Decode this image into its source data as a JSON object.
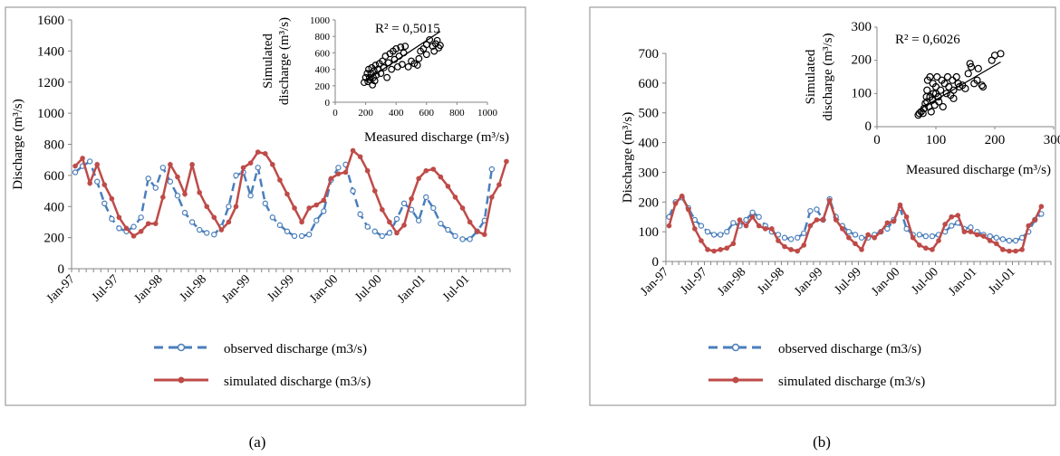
{
  "panel_labels": [
    "(a)",
    "(b)"
  ],
  "colors": {
    "observed": "#4A7EBB",
    "simulated": "#BE4B48",
    "frame": "#888888",
    "axis": "#868686",
    "text": "#000000"
  },
  "legend": {
    "observed": "observed discharge (m3/s)",
    "simulated": "simulated discharge (m3/s)"
  },
  "chart_data": [
    {
      "type": "line",
      "panel": "(a)",
      "ylabel": "Discharge (m³/s)",
      "ylim": [
        0,
        1600
      ],
      "yticks": [
        0,
        200,
        400,
        600,
        800,
        1000,
        1200,
        1400,
        1600
      ],
      "xticks": [
        "Jan-97",
        "Jul-97",
        "Jan-98",
        "Jul-98",
        "Jan-99",
        "Jul-99",
        "Jan-00",
        "Jul-00",
        "Jan-01",
        "Jul-01"
      ],
      "x_months": "Jan-97 to Dec-01 (60 monthly values)",
      "series": [
        {
          "name": "observed discharge (m3/s)",
          "values": [
            620,
            660,
            690,
            560,
            420,
            320,
            260,
            240,
            270,
            330,
            580,
            520,
            650,
            560,
            470,
            360,
            300,
            250,
            230,
            220,
            270,
            400,
            600,
            620,
            470,
            650,
            420,
            330,
            280,
            240,
            210,
            210,
            220,
            310,
            370,
            570,
            650,
            670,
            500,
            350,
            270,
            240,
            210,
            230,
            320,
            420,
            380,
            310,
            460,
            390,
            290,
            250,
            210,
            190,
            190,
            240,
            310,
            640,
            null,
            null
          ]
        },
        {
          "name": "simulated discharge (m3/s)",
          "values": [
            660,
            710,
            550,
            670,
            540,
            450,
            330,
            260,
            210,
            240,
            290,
            290,
            460,
            670,
            590,
            480,
            670,
            490,
            400,
            330,
            250,
            300,
            400,
            650,
            680,
            750,
            740,
            670,
            570,
            480,
            390,
            300,
            390,
            410,
            440,
            580,
            610,
            620,
            760,
            720,
            630,
            500,
            380,
            300,
            230,
            280,
            450,
            580,
            630,
            640,
            590,
            530,
            460,
            390,
            300,
            240,
            220,
            460,
            540,
            690
          ]
        }
      ],
      "inset": {
        "type": "scatter",
        "xlabel": "Measured discharge (m³/s)",
        "ylabel": "Simulated discharge (m³/s)",
        "xlim": [
          0,
          1000
        ],
        "ylim": [
          0,
          1000
        ],
        "xticks": [
          0,
          200,
          400,
          600,
          800,
          1000
        ],
        "yticks": [
          0,
          200,
          400,
          600,
          800,
          1000
        ],
        "r2_label": "R² = 0,5015",
        "trendline": [
          [
            200,
            260
          ],
          [
            690,
            860
          ]
        ],
        "points": [
          [
            190,
            240
          ],
          [
            200,
            300
          ],
          [
            210,
            350
          ],
          [
            215,
            250
          ],
          [
            220,
            400
          ],
          [
            225,
            300
          ],
          [
            230,
            270
          ],
          [
            235,
            350
          ],
          [
            240,
            420
          ],
          [
            245,
            210
          ],
          [
            250,
            300
          ],
          [
            255,
            380
          ],
          [
            260,
            260
          ],
          [
            265,
            450
          ],
          [
            270,
            330
          ],
          [
            280,
            400
          ],
          [
            290,
            470
          ],
          [
            300,
            350
          ],
          [
            310,
            500
          ],
          [
            320,
            420
          ],
          [
            330,
            560
          ],
          [
            340,
            300
          ],
          [
            350,
            480
          ],
          [
            360,
            590
          ],
          [
            370,
            400
          ],
          [
            380,
            620
          ],
          [
            390,
            520
          ],
          [
            400,
            650
          ],
          [
            410,
            430
          ],
          [
            420,
            560
          ],
          [
            430,
            670
          ],
          [
            440,
            460
          ],
          [
            450,
            600
          ],
          [
            460,
            680
          ],
          [
            480,
            430
          ],
          [
            500,
            500
          ],
          [
            520,
            470
          ],
          [
            540,
            450
          ],
          [
            560,
            620
          ],
          [
            580,
            650
          ],
          [
            600,
            700
          ],
          [
            620,
            760
          ],
          [
            640,
            680
          ],
          [
            650,
            620
          ],
          [
            660,
            710
          ],
          [
            670,
            750
          ],
          [
            680,
            660
          ],
          [
            690,
            690
          ],
          [
            600,
            580
          ],
          [
            550,
            530
          ]
        ]
      }
    },
    {
      "type": "line",
      "panel": "(b)",
      "ylabel": "Discharge (m³/s)",
      "ylim": [
        0,
        700
      ],
      "yticks": [
        0,
        100,
        200,
        300,
        400,
        500,
        600,
        700
      ],
      "xticks": [
        "Jan-97",
        "Jul-97",
        "Jan-98",
        "Jul-98",
        "Jan-99",
        "Jul-99",
        "Jan-00",
        "Jul-00",
        "Jan-01",
        "Jul-01"
      ],
      "x_months": "Jan-97 to Dec-01 (60 monthly values)",
      "series": [
        {
          "name": "observed discharge (m3/s)",
          "values": [
            150,
            200,
            215,
            180,
            140,
            120,
            100,
            90,
            90,
            100,
            130,
            120,
            140,
            165,
            150,
            120,
            100,
            90,
            80,
            75,
            80,
            95,
            170,
            175,
            140,
            210,
            150,
            120,
            100,
            90,
            80,
            80,
            90,
            100,
            110,
            140,
            180,
            110,
            90,
            90,
            85,
            85,
            90,
            100,
            120,
            130,
            110,
            115,
            100,
            90,
            85,
            80,
            75,
            70,
            70,
            80,
            100,
            140,
            160,
            null
          ]
        },
        {
          "name": "simulated discharge (m3/s)",
          "values": [
            120,
            195,
            220,
            175,
            110,
            70,
            40,
            35,
            40,
            45,
            60,
            140,
            120,
            150,
            120,
            110,
            110,
            70,
            50,
            40,
            35,
            55,
            120,
            140,
            140,
            205,
            140,
            110,
            80,
            60,
            40,
            90,
            80,
            100,
            130,
            135,
            190,
            150,
            80,
            55,
            45,
            40,
            70,
            125,
            150,
            155,
            100,
            100,
            90,
            85,
            70,
            60,
            40,
            35,
            35,
            40,
            120,
            140,
            185,
            null
          ]
        }
      ],
      "inset": {
        "type": "scatter",
        "xlabel": "Measured discharge (m³/s)",
        "ylabel": "Simulated discharge (m³/s)",
        "xlim": [
          0,
          300
        ],
        "ylim": [
          0,
          300
        ],
        "xticks": [
          0,
          100,
          200,
          300
        ],
        "yticks": [
          0,
          100,
          200,
          300
        ],
        "r2_label": "R² = 0,6026",
        "trendline": [
          [
            70,
            50
          ],
          [
            210,
            195
          ]
        ],
        "points": [
          [
            70,
            35
          ],
          [
            72,
            40
          ],
          [
            75,
            45
          ],
          [
            78,
            40
          ],
          [
            80,
            55
          ],
          [
            82,
            70
          ],
          [
            84,
            90
          ],
          [
            85,
            110
          ],
          [
            86,
            140
          ],
          [
            88,
            60
          ],
          [
            90,
            150
          ],
          [
            92,
            45
          ],
          [
            94,
            80
          ],
          [
            95,
            130
          ],
          [
            96,
            100
          ],
          [
            98,
            65
          ],
          [
            100,
            120
          ],
          [
            102,
            150
          ],
          [
            104,
            90
          ],
          [
            105,
            75
          ],
          [
            108,
            110
          ],
          [
            110,
            140
          ],
          [
            112,
            60
          ],
          [
            115,
            130
          ],
          [
            118,
            100
          ],
          [
            120,
            150
          ],
          [
            122,
            120
          ],
          [
            125,
            95
          ],
          [
            128,
            140
          ],
          [
            130,
            110
          ],
          [
            135,
            150
          ],
          [
            138,
            130
          ],
          [
            140,
            120
          ],
          [
            145,
            125
          ],
          [
            150,
            115
          ],
          [
            155,
            160
          ],
          [
            158,
            190
          ],
          [
            160,
            180
          ],
          [
            165,
            130
          ],
          [
            170,
            140
          ],
          [
            172,
            175
          ],
          [
            178,
            125
          ],
          [
            180,
            120
          ],
          [
            195,
            200
          ],
          [
            200,
            215
          ],
          [
            210,
            220
          ],
          [
            100,
            100
          ],
          [
            90,
            90
          ],
          [
            85,
            75
          ],
          [
            130,
            85
          ]
        ]
      }
    }
  ]
}
